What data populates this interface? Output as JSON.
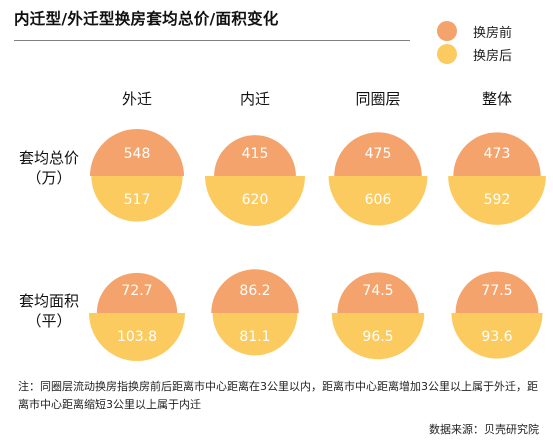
{
  "title": "内迁型/外迁型换房套均总价/面积变化",
  "legend": {
    "before": {
      "label": "换房前",
      "color": "#F4A36C"
    },
    "after": {
      "label": "换房后",
      "color": "#FBCB60"
    }
  },
  "chart_data": {
    "type": "semicircle-comparison",
    "categories": [
      "外迁",
      "内迁",
      "同圈层",
      "整体"
    ],
    "rows": [
      {
        "label_line1": "套均总价",
        "label_line2": "（万）",
        "series": [
          {
            "name": "换房前",
            "values": [
              "548",
              "415",
              "475",
              "473"
            ]
          },
          {
            "name": "换房后",
            "values": [
              "517",
              "620",
              "606",
              "592"
            ]
          }
        ]
      },
      {
        "label_line1": "套均面积",
        "label_line2": "（平）",
        "series": [
          {
            "name": "换房前",
            "values": [
              "72.7",
              "86.2",
              "74.5",
              "77.5"
            ]
          },
          {
            "name": "换房后",
            "values": [
              "103.8",
              "81.1",
              "96.5",
              "93.6"
            ]
          }
        ]
      }
    ]
  },
  "note": "注：同圈层流动换房指换房前后距离市中心距离在3公里以内，距离市中心距离增加3公里以上属于外迁，距离市中心距离缩短3公里以上属于内迁",
  "source": "数据来源：贝壳研究院"
}
